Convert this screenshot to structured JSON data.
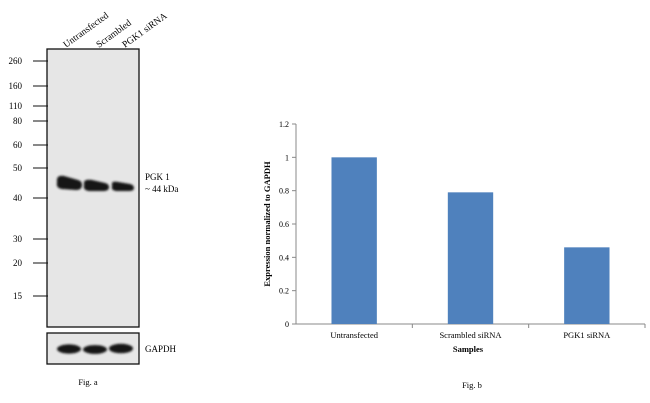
{
  "blot": {
    "lane_labels": [
      "Untransfected",
      "Scrambled",
      "PGK1 siRNA"
    ],
    "markers": [
      "260",
      "160",
      "110",
      "80",
      "60",
      "50",
      "40",
      "30",
      "20",
      "15"
    ],
    "band_label_line1": "PGK 1",
    "band_label_line2": "~ 44 kDa",
    "loading_label": "GAPDH",
    "caption": "Fig. a"
  },
  "caption_b": "Fig. b",
  "chart_data": {
    "type": "bar",
    "categories": [
      "Untransfected",
      "Scrambled siRNA",
      "PGK1 siRNA"
    ],
    "values": [
      1.0,
      0.79,
      0.46
    ],
    "title": "",
    "xlabel": "Samples",
    "ylabel": "Expression normalized to GAPDH",
    "ylim": [
      0,
      1.2
    ],
    "yticks": [
      "0",
      "0.2",
      "0.4",
      "0.6",
      "0.8",
      "1",
      "1.2"
    ],
    "grid": false,
    "bar_color": "#4f81bd"
  }
}
